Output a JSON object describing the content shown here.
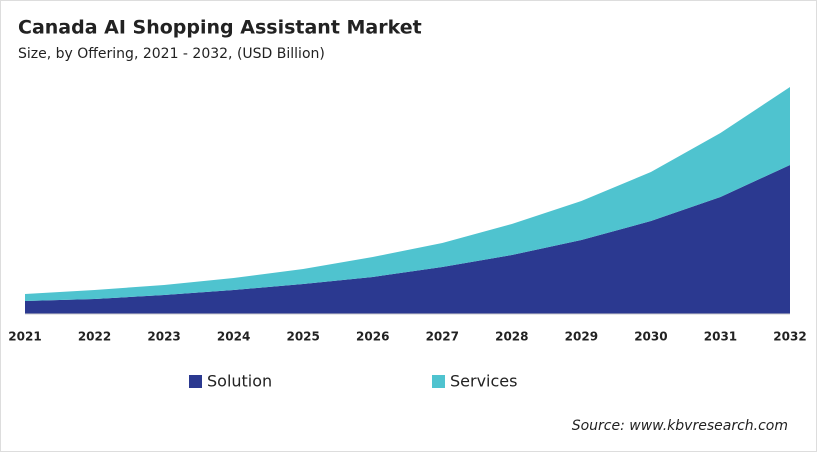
{
  "chart_data": {
    "type": "stacked-area",
    "title": "Canada AI Shopping Assistant Market",
    "subtitle": "Size, by Offering, 2021 - 2032, (USD Billion)",
    "source": "Source: www.kbvresearch.com",
    "categories": [
      "2021",
      "2022",
      "2023",
      "2024",
      "2025",
      "2026",
      "2027",
      "2028",
      "2029",
      "2030",
      "2031",
      "2032"
    ],
    "series": [
      {
        "name": "Solution",
        "color": "#2b3990",
        "values": [
          0.13,
          0.15,
          0.19,
          0.24,
          0.3,
          0.37,
          0.47,
          0.59,
          0.74,
          0.93,
          1.17,
          1.49
        ]
      },
      {
        "name": "Services",
        "color": "#4fc3cf",
        "values": [
          0.07,
          0.09,
          0.1,
          0.12,
          0.15,
          0.2,
          0.24,
          0.31,
          0.39,
          0.49,
          0.64,
          0.78
        ]
      }
    ]
  }
}
